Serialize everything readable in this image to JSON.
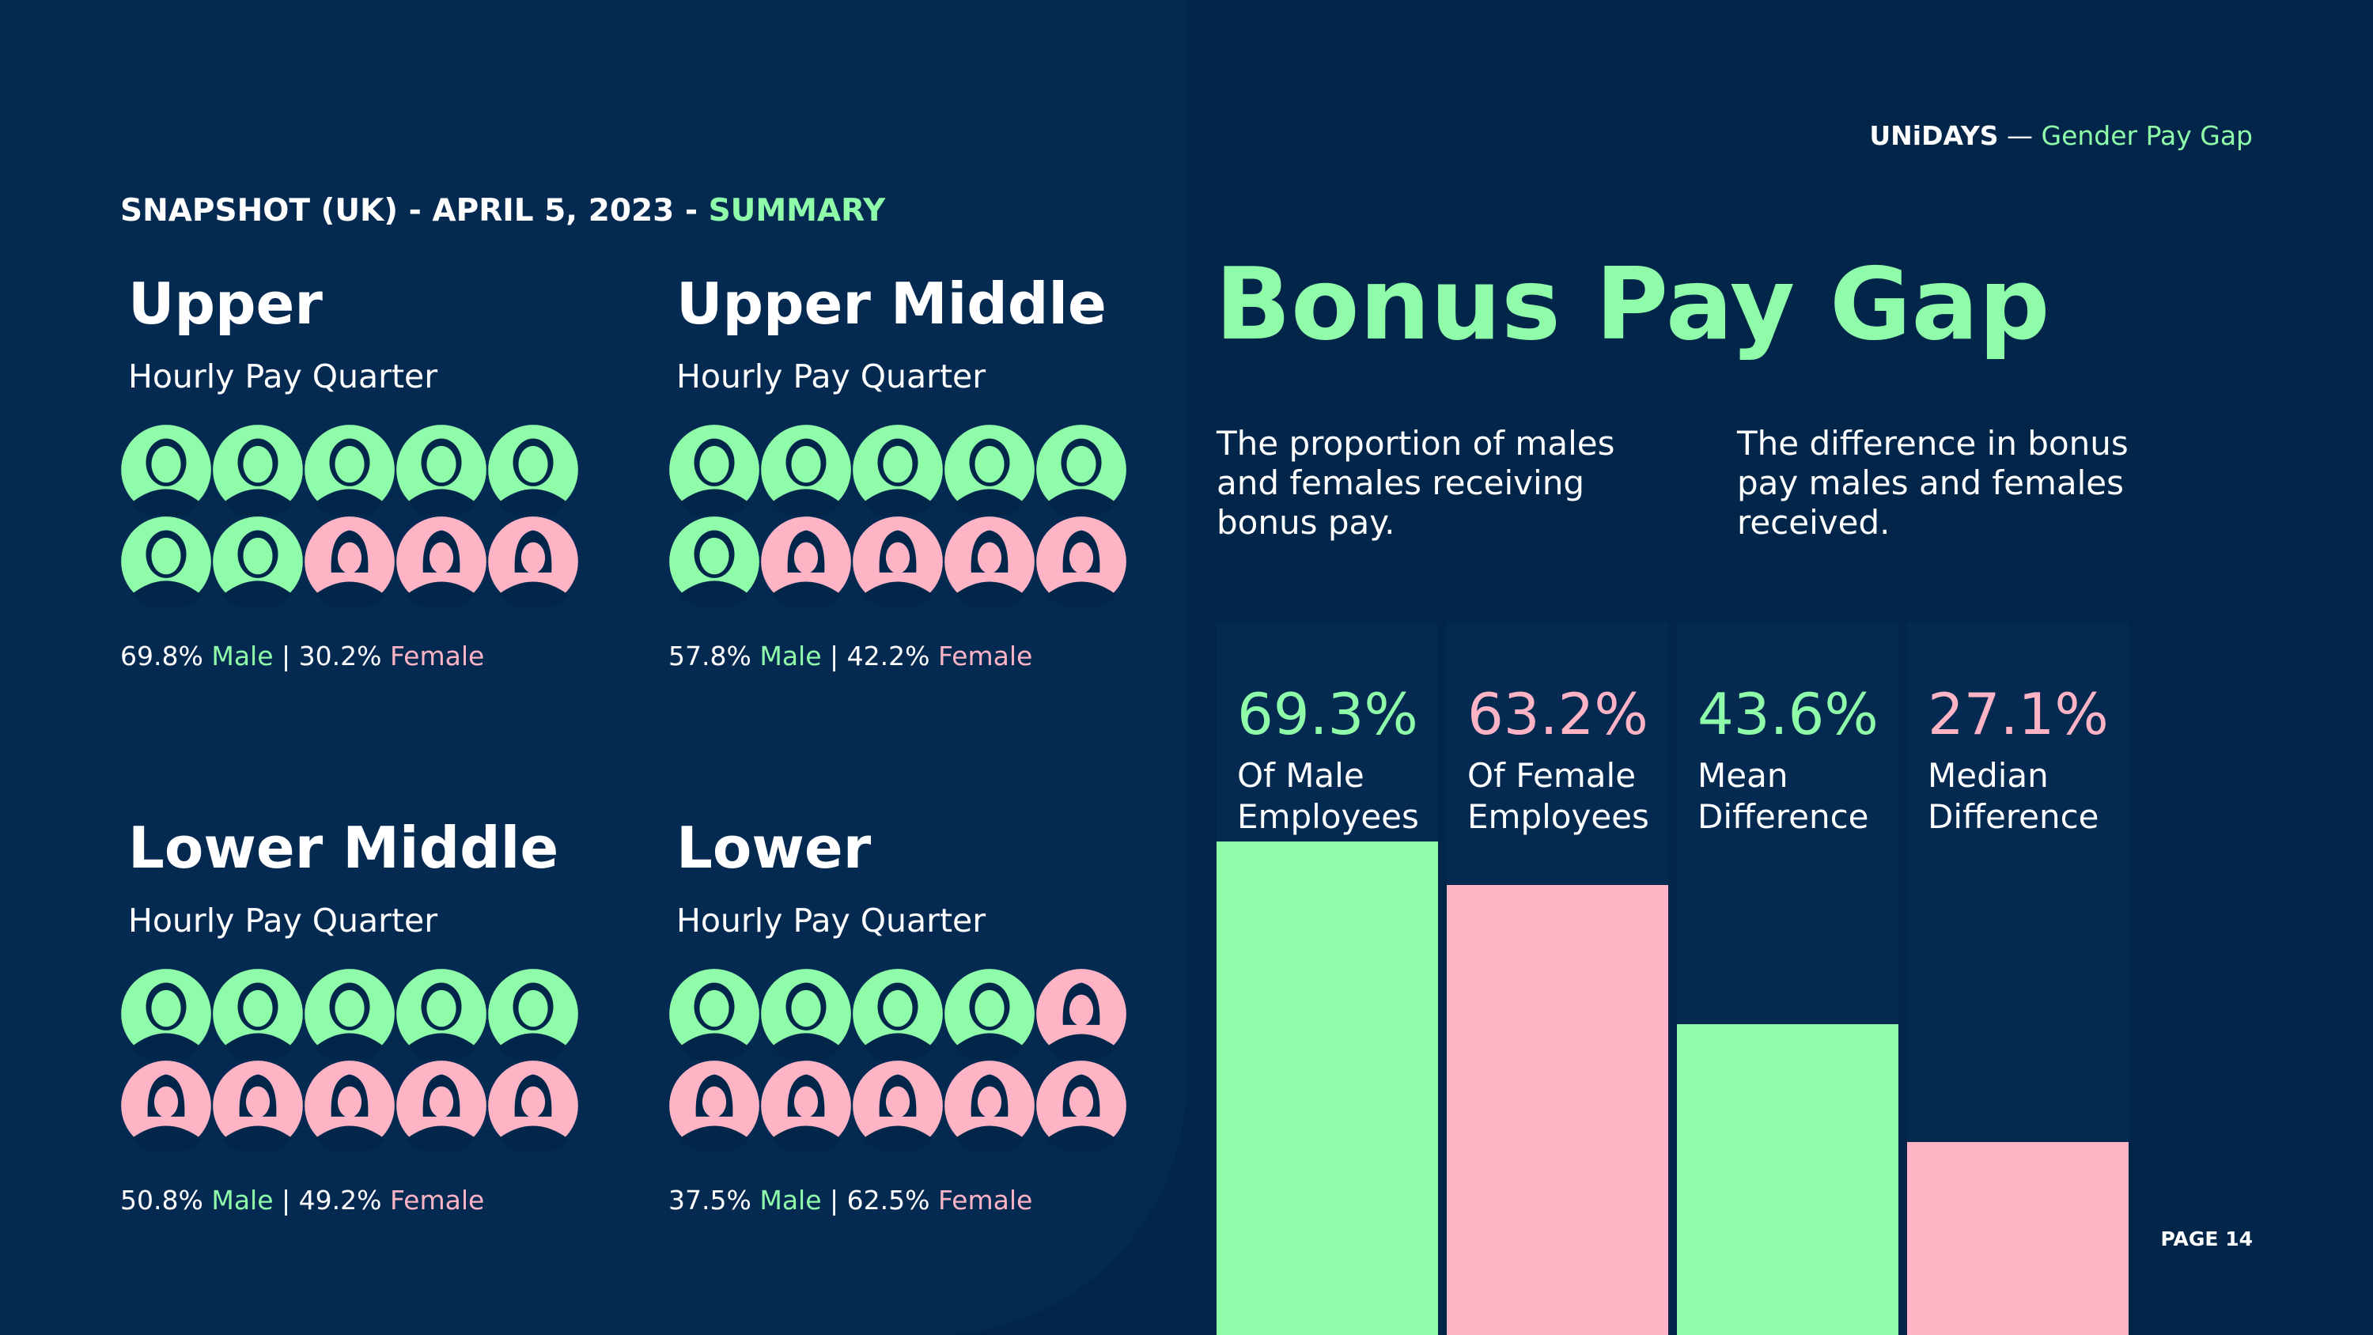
{
  "header": {
    "brand_name": "UNiDAYS",
    "brand_sep": " — ",
    "brand_doc": "Gender Pay Gap",
    "snapshot_prefix": "SNAPSHOT (UK) - APRIL 5, 2023 - ",
    "snapshot_accent": "SUMMARY"
  },
  "colors": {
    "male": "#8efca8",
    "female": "#ffb4c6",
    "background": "#02264a",
    "panel": "#052a52"
  },
  "icons": {
    "male": "person-short-hair-icon",
    "female": "person-long-hair-icon"
  },
  "quarters": [
    {
      "title": "Upper",
      "subtitle": "Hourly Pay Quarter",
      "male_icons": 7,
      "male_pct": "69.8%",
      "male_label": "Male",
      "sep": " | ",
      "female_pct": "30.2%",
      "female_label": "Female"
    },
    {
      "title": "Upper Middle",
      "subtitle": "Hourly Pay Quarter",
      "male_icons": 6,
      "male_pct": "57.8%",
      "male_label": "Male",
      "sep": " | ",
      "female_pct": "42.2%",
      "female_label": "Female"
    },
    {
      "title": "Lower Middle",
      "subtitle": "Hourly Pay Quarter",
      "male_icons": 5,
      "male_pct": "50.8%",
      "male_label": "Male",
      "sep": " | ",
      "female_pct": "49.2%",
      "female_label": "Female"
    },
    {
      "title": "Lower",
      "subtitle": "Hourly Pay Quarter",
      "male_icons": 4,
      "male_pct": "37.5%",
      "male_label": "Male",
      "sep": " | ",
      "female_pct": "62.5%",
      "female_label": "Female"
    }
  ],
  "bonus": {
    "title": "Bonus Pay Gap",
    "desc_left": "The proportion of males and females receiving bonus pay.",
    "desc_right": "The difference in bonus pay males and females received."
  },
  "chart_data": {
    "type": "bar",
    "categories": [
      "Of Male Employees",
      "Of Female Employees",
      "Mean Difference",
      "Median Difference"
    ],
    "values": [
      69.3,
      63.2,
      43.6,
      27.1
    ],
    "data_labels": [
      "69.3%",
      "63.2%",
      "43.6%",
      "27.1%"
    ],
    "colors": [
      "#8efca8",
      "#ffb4c6",
      "#8efca8",
      "#ffb4c6"
    ],
    "ylim": [
      0,
      100
    ]
  },
  "footer": {
    "page": "PAGE 14"
  }
}
